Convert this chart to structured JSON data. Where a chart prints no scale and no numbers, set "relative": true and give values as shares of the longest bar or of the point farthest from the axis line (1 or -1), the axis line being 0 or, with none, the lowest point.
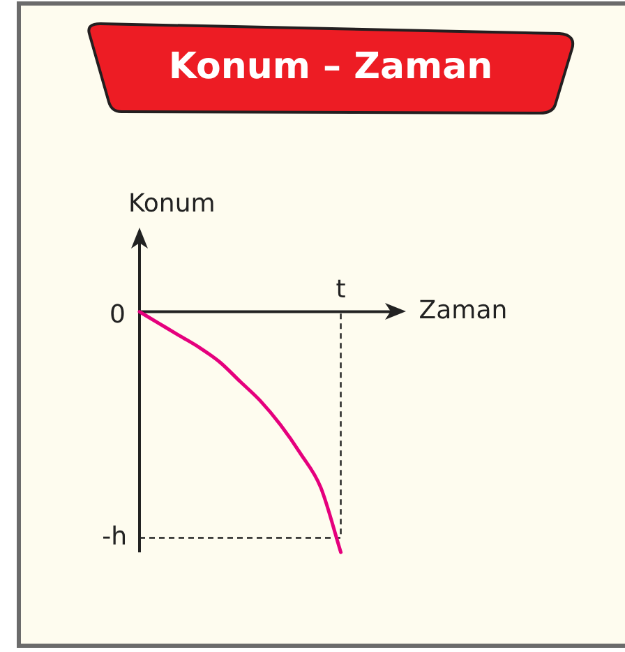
{
  "chart_data": {
    "type": "line",
    "relative": true,
    "title": "Konum – Zaman",
    "xlabel": "Zaman",
    "ylabel": "Konum",
    "categories": [
      null,
      null,
      null,
      null,
      null,
      null,
      null,
      null,
      null,
      null,
      null
    ],
    "series": [
      {
        "color": "#e5007d",
        "values": [
          0,
          -0.05,
          -0.1,
          -0.15,
          -0.21,
          -0.29,
          -0.37,
          -0.47,
          -0.59,
          -0.73,
          -1
        ]
      }
    ],
    "ref_lines": [
      {
        "axis": "y",
        "value": -0.94,
        "label": "-h",
        "line_style": "dashed",
        "color": "#222222"
      }
    ],
    "annotations": [
      "0",
      "t"
    ],
    "marker": "none",
    "line_style": "solid"
  }
}
